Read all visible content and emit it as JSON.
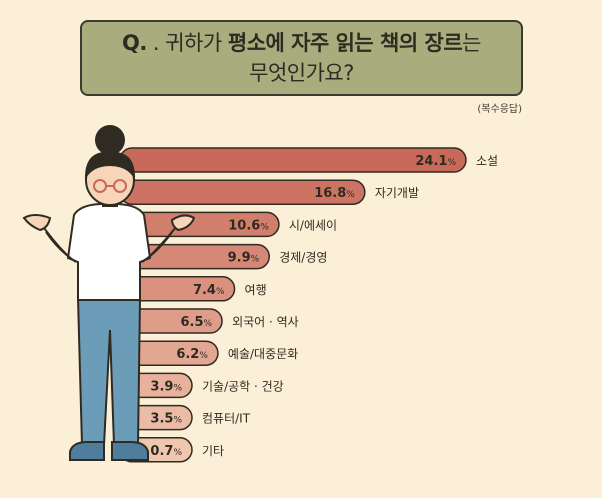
{
  "title": {
    "q_label": "Q.",
    "dot": ".",
    "line1_pre": "귀하가 ",
    "line1_bold": "평소에 자주 읽는 책의 장르",
    "line1_post": "는",
    "line2": "무엇인가요?"
  },
  "note": "(복수응답)",
  "colors": {
    "background": "#fcefd8",
    "title_bg": "#a8ad7d",
    "bar_dark": "#c9695a",
    "bar_light": "#efc6ae",
    "bar_stroke": "#2f2b22"
  },
  "chart_data": {
    "type": "bar",
    "orientation": "horizontal",
    "unit": "%",
    "categories": [
      "소설",
      "자기개발",
      "시/에세이",
      "경제/경영",
      "여행",
      "외국어 · 역사",
      "예술/대중문화",
      "기술/공학 · 건강",
      "컴퓨터/IT",
      "기타"
    ],
    "values": [
      24.1,
      16.8,
      10.6,
      9.9,
      7.4,
      6.5,
      6.2,
      3.9,
      3.5,
      0.7
    ],
    "value_labels": [
      "24.1",
      "16.8",
      "10.6",
      "9.9",
      "7.4",
      "6.5",
      "6.2",
      "3.9",
      "3.5",
      "0.7"
    ]
  }
}
